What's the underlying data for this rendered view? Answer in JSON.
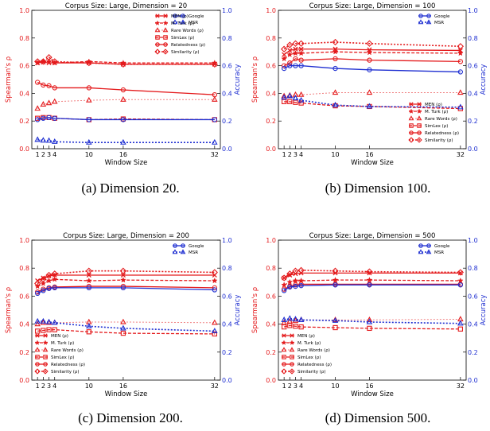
{
  "chart_data": [
    {
      "type": "line",
      "title": "Corpus Size: Large, Dimension = 20",
      "caption": "(a) Dimension 20.",
      "xlabel": "Window Size",
      "ylabel": "Spearman's ρ",
      "y2label": "Accuracy",
      "x": [
        1,
        2,
        3,
        4,
        10,
        16,
        32
      ],
      "xticks": [
        "1",
        "2",
        "3",
        "4",
        "10",
        "16",
        "32"
      ],
      "xlim": [
        0,
        33
      ],
      "ylim": [
        0.0,
        1.0
      ],
      "y2lim": [
        0.0,
        1.0
      ],
      "yticks": [
        "0.0",
        "0.2",
        "0.4",
        "0.6",
        "0.8",
        "1.0"
      ],
      "legend_right_placement": "top-right",
      "legend_left_placement": "top-right",
      "series": [
        {
          "name": "MEN (ρ)",
          "axis": "left",
          "color": "#e41a1c",
          "marker": "x",
          "style": "solid",
          "values": [
            0.62,
            0.625,
            0.62,
            0.62,
            0.62,
            0.61,
            0.61
          ]
        },
        {
          "name": "M. Turk (ρ)",
          "axis": "left",
          "color": "#e41a1c",
          "marker": "star",
          "style": "dashed",
          "values": [
            0.62,
            0.63,
            0.63,
            0.62,
            0.63,
            0.62,
            0.62
          ]
        },
        {
          "name": "Rare Words (ρ)",
          "axis": "left",
          "color": "#e41a1c",
          "marker": "tri",
          "style": "dotted-light",
          "values": [
            0.29,
            0.32,
            0.33,
            0.34,
            0.35,
            0.355,
            0.355
          ]
        },
        {
          "name": "SimLex (ρ)",
          "axis": "left",
          "color": "#e41a1c",
          "marker": "square",
          "style": "dashed",
          "values": [
            0.22,
            0.225,
            0.225,
            0.22,
            0.21,
            0.215,
            0.21
          ]
        },
        {
          "name": "Relatedness (ρ)",
          "axis": "left",
          "color": "#e41a1c",
          "marker": "circle",
          "style": "solid",
          "values": [
            0.48,
            0.46,
            0.455,
            0.44,
            0.44,
            0.425,
            0.39
          ]
        },
        {
          "name": "Similarity (ρ)",
          "axis": "left",
          "color": "#e41a1c",
          "marker": "diamond",
          "style": "dotted",
          "values": [
            0.63,
            0.63,
            0.66,
            0.63,
            0.62,
            0.61,
            0.61
          ]
        },
        {
          "name": "Google",
          "axis": "right",
          "color": "#1f2fd1",
          "marker": "circle",
          "style": "solid",
          "values": [
            0.21,
            0.22,
            0.225,
            0.22,
            0.21,
            0.21,
            0.21
          ]
        },
        {
          "name": "MSR",
          "axis": "right",
          "color": "#1f2fd1",
          "marker": "tri",
          "style": "dotted",
          "values": [
            0.065,
            0.06,
            0.058,
            0.05,
            0.045,
            0.045,
            0.045
          ]
        }
      ]
    },
    {
      "type": "line",
      "title": "Corpus Size: Large, Dimension = 100",
      "caption": "(b) Dimension 100.",
      "xlabel": "Window Size",
      "ylabel": "Spearman's ρ",
      "y2label": "Accuracy",
      "x": [
        1,
        2,
        3,
        4,
        10,
        16,
        32
      ],
      "xticks": [
        "1",
        "2",
        "3",
        "4",
        "10",
        "16",
        "32"
      ],
      "xlim": [
        0,
        33
      ],
      "ylim": [
        0.0,
        1.0
      ],
      "y2lim": [
        0.0,
        1.0
      ],
      "yticks": [
        "0.0",
        "0.2",
        "0.4",
        "0.6",
        "0.8",
        "1.0"
      ],
      "legend_right_placement": "top-right",
      "legend_left_placement": "bottom-right",
      "series": [
        {
          "name": "MEN (ρ)",
          "axis": "left",
          "color": "#e41a1c",
          "marker": "x",
          "style": "solid",
          "values": [
            0.68,
            0.71,
            0.72,
            0.72,
            0.72,
            0.715,
            0.71
          ]
        },
        {
          "name": "M. Turk (ρ)",
          "axis": "left",
          "color": "#e41a1c",
          "marker": "star",
          "style": "dashed",
          "values": [
            0.65,
            0.68,
            0.69,
            0.69,
            0.7,
            0.695,
            0.69
          ]
        },
        {
          "name": "Rare Words (ρ)",
          "axis": "left",
          "color": "#e41a1c",
          "marker": "tri",
          "style": "dotted-light",
          "values": [
            0.38,
            0.385,
            0.39,
            0.39,
            0.405,
            0.405,
            0.405
          ]
        },
        {
          "name": "SimLex (ρ)",
          "axis": "left",
          "color": "#e41a1c",
          "marker": "square",
          "style": "dashed",
          "values": [
            0.34,
            0.34,
            0.335,
            0.33,
            0.31,
            0.305,
            0.29
          ]
        },
        {
          "name": "Relatedness (ρ)",
          "axis": "left",
          "color": "#e41a1c",
          "marker": "circle",
          "style": "solid",
          "values": [
            0.6,
            0.62,
            0.65,
            0.64,
            0.65,
            0.64,
            0.63
          ]
        },
        {
          "name": "Similarity (ρ)",
          "axis": "left",
          "color": "#e41a1c",
          "marker": "diamond",
          "style": "dotted",
          "values": [
            0.72,
            0.75,
            0.76,
            0.76,
            0.77,
            0.76,
            0.74
          ]
        },
        {
          "name": "Google",
          "axis": "right",
          "color": "#1f2fd1",
          "marker": "circle",
          "style": "solid",
          "values": [
            0.58,
            0.6,
            0.6,
            0.6,
            0.58,
            0.57,
            0.555
          ]
        },
        {
          "name": "MSR",
          "axis": "right",
          "color": "#1f2fd1",
          "marker": "tri",
          "style": "dotted",
          "values": [
            0.37,
            0.38,
            0.365,
            0.35,
            0.315,
            0.305,
            0.3
          ]
        }
      ]
    },
    {
      "type": "line",
      "title": "Corpus Size: Large, Dimension = 200",
      "caption": "(c) Dimension 200.",
      "xlabel": "Window Size",
      "ylabel": "Spearman's ρ",
      "y2label": "Accuracy",
      "x": [
        1,
        2,
        3,
        4,
        10,
        16,
        32
      ],
      "xticks": [
        "1",
        "2",
        "3",
        "4",
        "10",
        "16",
        "32"
      ],
      "xlim": [
        0,
        33
      ],
      "ylim": [
        0.0,
        1.0
      ],
      "y2lim": [
        0.0,
        1.0
      ],
      "yticks": [
        "0.0",
        "0.2",
        "0.4",
        "0.6",
        "0.8",
        "1.0"
      ],
      "legend_right_placement": "top-right",
      "legend_left_placement": "bottom-left",
      "series": [
        {
          "name": "MEN (ρ)",
          "axis": "left",
          "color": "#e41a1c",
          "marker": "x",
          "style": "solid",
          "values": [
            0.71,
            0.73,
            0.745,
            0.75,
            0.75,
            0.75,
            0.75
          ]
        },
        {
          "name": "M. Turk (ρ)",
          "axis": "left",
          "color": "#e41a1c",
          "marker": "star",
          "style": "dashed",
          "values": [
            0.67,
            0.69,
            0.71,
            0.72,
            0.71,
            0.715,
            0.71
          ]
        },
        {
          "name": "Rare Words (ρ)",
          "axis": "left",
          "color": "#e41a1c",
          "marker": "tri",
          "style": "dotted-light",
          "values": [
            0.4,
            0.41,
            0.41,
            0.41,
            0.415,
            0.415,
            0.41
          ]
        },
        {
          "name": "SimLex (ρ)",
          "axis": "left",
          "color": "#e41a1c",
          "marker": "square",
          "style": "dashed",
          "values": [
            0.35,
            0.355,
            0.36,
            0.36,
            0.345,
            0.335,
            0.33
          ]
        },
        {
          "name": "Relatedness (ρ)",
          "axis": "left",
          "color": "#e41a1c",
          "marker": "circle",
          "style": "solid",
          "values": [
            0.63,
            0.65,
            0.66,
            0.665,
            0.67,
            0.67,
            0.66
          ]
        },
        {
          "name": "Similarity (ρ)",
          "axis": "left",
          "color": "#e41a1c",
          "marker": "diamond",
          "style": "dotted",
          "values": [
            0.69,
            0.72,
            0.75,
            0.76,
            0.78,
            0.78,
            0.77
          ]
        },
        {
          "name": "Google",
          "axis": "right",
          "color": "#1f2fd1",
          "marker": "circle",
          "style": "solid",
          "values": [
            0.62,
            0.64,
            0.655,
            0.66,
            0.66,
            0.66,
            0.645
          ]
        },
        {
          "name": "MSR",
          "axis": "right",
          "color": "#1f2fd1",
          "marker": "tri",
          "style": "dotted",
          "values": [
            0.42,
            0.42,
            0.415,
            0.41,
            0.385,
            0.37,
            0.35
          ]
        }
      ]
    },
    {
      "type": "line",
      "title": "Corpus Size: Large, Dimension = 500",
      "caption": "(d) Dimension 500.",
      "xlabel": "Window Size",
      "ylabel": "Spearman's ρ",
      "y2label": "Accuracy",
      "x": [
        1,
        2,
        3,
        4,
        10,
        16,
        32
      ],
      "xticks": [
        "1",
        "2",
        "3",
        "4",
        "10",
        "16",
        "32"
      ],
      "xlim": [
        0,
        33
      ],
      "ylim": [
        0.0,
        1.0
      ],
      "y2lim": [
        0.0,
        1.0
      ],
      "yticks": [
        "0.0",
        "0.2",
        "0.4",
        "0.6",
        "0.8",
        "1.0"
      ],
      "legend_right_placement": "top-right",
      "legend_left_placement": "bottom-left",
      "series": [
        {
          "name": "MEN (ρ)",
          "axis": "left",
          "color": "#e41a1c",
          "marker": "x",
          "style": "solid",
          "values": [
            0.73,
            0.75,
            0.76,
            0.765,
            0.765,
            0.765,
            0.765
          ]
        },
        {
          "name": "M. Turk (ρ)",
          "axis": "left",
          "color": "#e41a1c",
          "marker": "star",
          "style": "dashed",
          "values": [
            0.68,
            0.7,
            0.71,
            0.71,
            0.715,
            0.715,
            0.71
          ]
        },
        {
          "name": "Rare Words (ρ)",
          "axis": "left",
          "color": "#e41a1c",
          "marker": "tri",
          "style": "dotted-light",
          "values": [
            0.41,
            0.42,
            0.425,
            0.43,
            0.43,
            0.43,
            0.435
          ]
        },
        {
          "name": "SimLex (ρ)",
          "axis": "left",
          "color": "#e41a1c",
          "marker": "square",
          "style": "dashed",
          "values": [
            0.38,
            0.39,
            0.385,
            0.38,
            0.375,
            0.37,
            0.365
          ]
        },
        {
          "name": "Relatedness (ρ)",
          "axis": "left",
          "color": "#e41a1c",
          "marker": "circle",
          "style": "solid",
          "values": [
            0.65,
            0.67,
            0.68,
            0.685,
            0.685,
            0.685,
            0.685
          ]
        },
        {
          "name": "Similarity (ρ)",
          "axis": "left",
          "color": "#e41a1c",
          "marker": "diamond",
          "style": "dotted",
          "values": [
            0.73,
            0.76,
            0.78,
            0.785,
            0.78,
            0.775,
            0.77
          ]
        },
        {
          "name": "Google",
          "axis": "right",
          "color": "#1f2fd1",
          "marker": "circle",
          "style": "solid",
          "values": [
            0.64,
            0.665,
            0.67,
            0.675,
            0.68,
            0.68,
            0.68
          ]
        },
        {
          "name": "MSR",
          "axis": "right",
          "color": "#1f2fd1",
          "marker": "tri",
          "style": "dotted",
          "values": [
            0.43,
            0.44,
            0.435,
            0.43,
            0.425,
            0.415,
            0.405
          ]
        }
      ]
    }
  ]
}
